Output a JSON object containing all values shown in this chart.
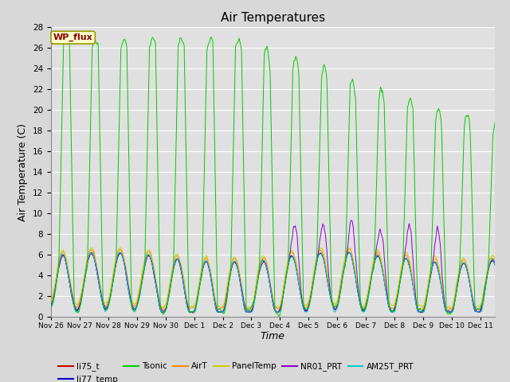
{
  "title": "Air Temperatures",
  "xlabel": "Time",
  "ylabel": "Air Temperature (C)",
  "ylim": [
    0,
    28
  ],
  "yticks": [
    0,
    2,
    4,
    6,
    8,
    10,
    12,
    14,
    16,
    18,
    20,
    22,
    24,
    26,
    28
  ],
  "legend_entries": [
    "li75_t",
    "li77_temp",
    "Tsonic",
    "AirT",
    "PanelTemp",
    "NR01_PRT",
    "AM25T_PRT"
  ],
  "legend_colors": [
    "#cc0000",
    "#0000cc",
    "#00bb00",
    "#ff8800",
    "#cccc00",
    "#8800cc",
    "#00cccc"
  ],
  "wp_flux_label": "WP_flux",
  "background_color": "#e0e0e0",
  "grid_color": "#ffffff",
  "title_fontsize": 11,
  "axis_label_fontsize": 9,
  "tick_labels": [
    "Nov 26",
    "Nov 27",
    "Nov 28",
    "Nov 29",
    "Nov 30",
    "Dec 1",
    "Dec 2",
    "Dec 3",
    "Dec 4",
    "Dec 5",
    "Dec 6",
    "Dec 7",
    "Dec 8",
    "Dec 9",
    "Dec 10",
    "Dec 11"
  ]
}
